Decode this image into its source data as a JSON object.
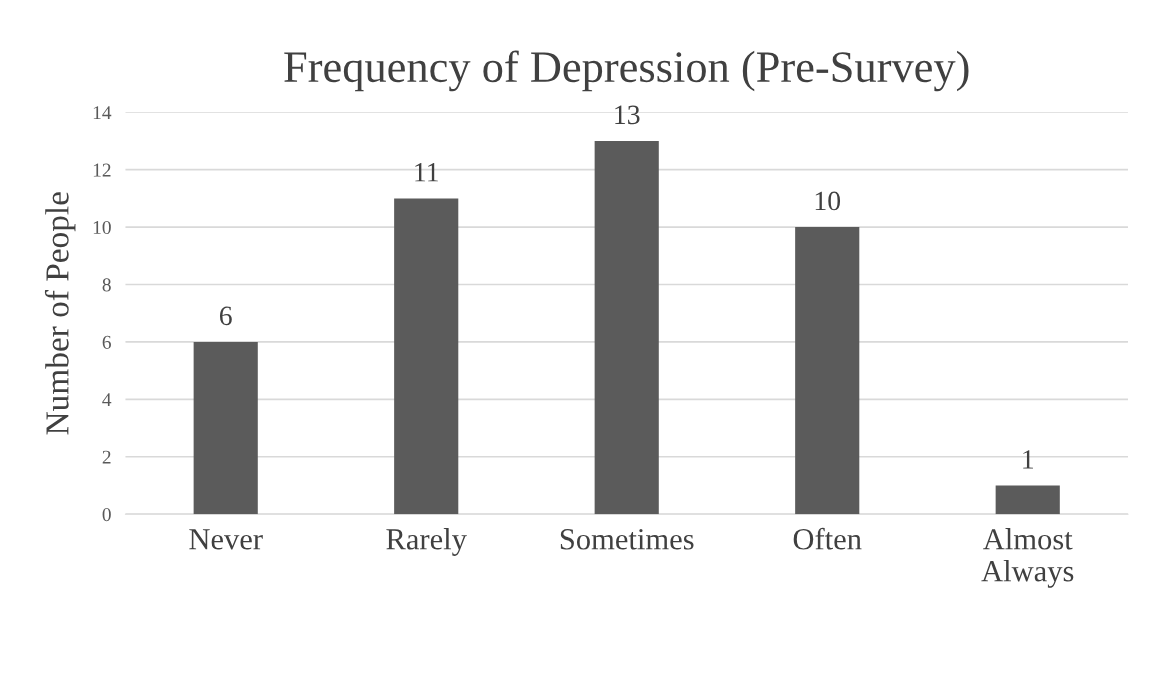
{
  "chart_data": {
    "type": "bar",
    "title": "Frequency of Depression (Pre-Survey)",
    "ylabel": "Number of People",
    "categories": [
      "Never",
      "Rarely",
      "Sometimes",
      "Often",
      "Almost\nAlways"
    ],
    "values": [
      6,
      11,
      13,
      10,
      1
    ],
    "color": "#5b5b5b",
    "ylim": [
      0,
      14
    ],
    "yticks": [
      0,
      2,
      4,
      6,
      8,
      10,
      12,
      14
    ],
    "grid": "y",
    "data_labels": true
  }
}
